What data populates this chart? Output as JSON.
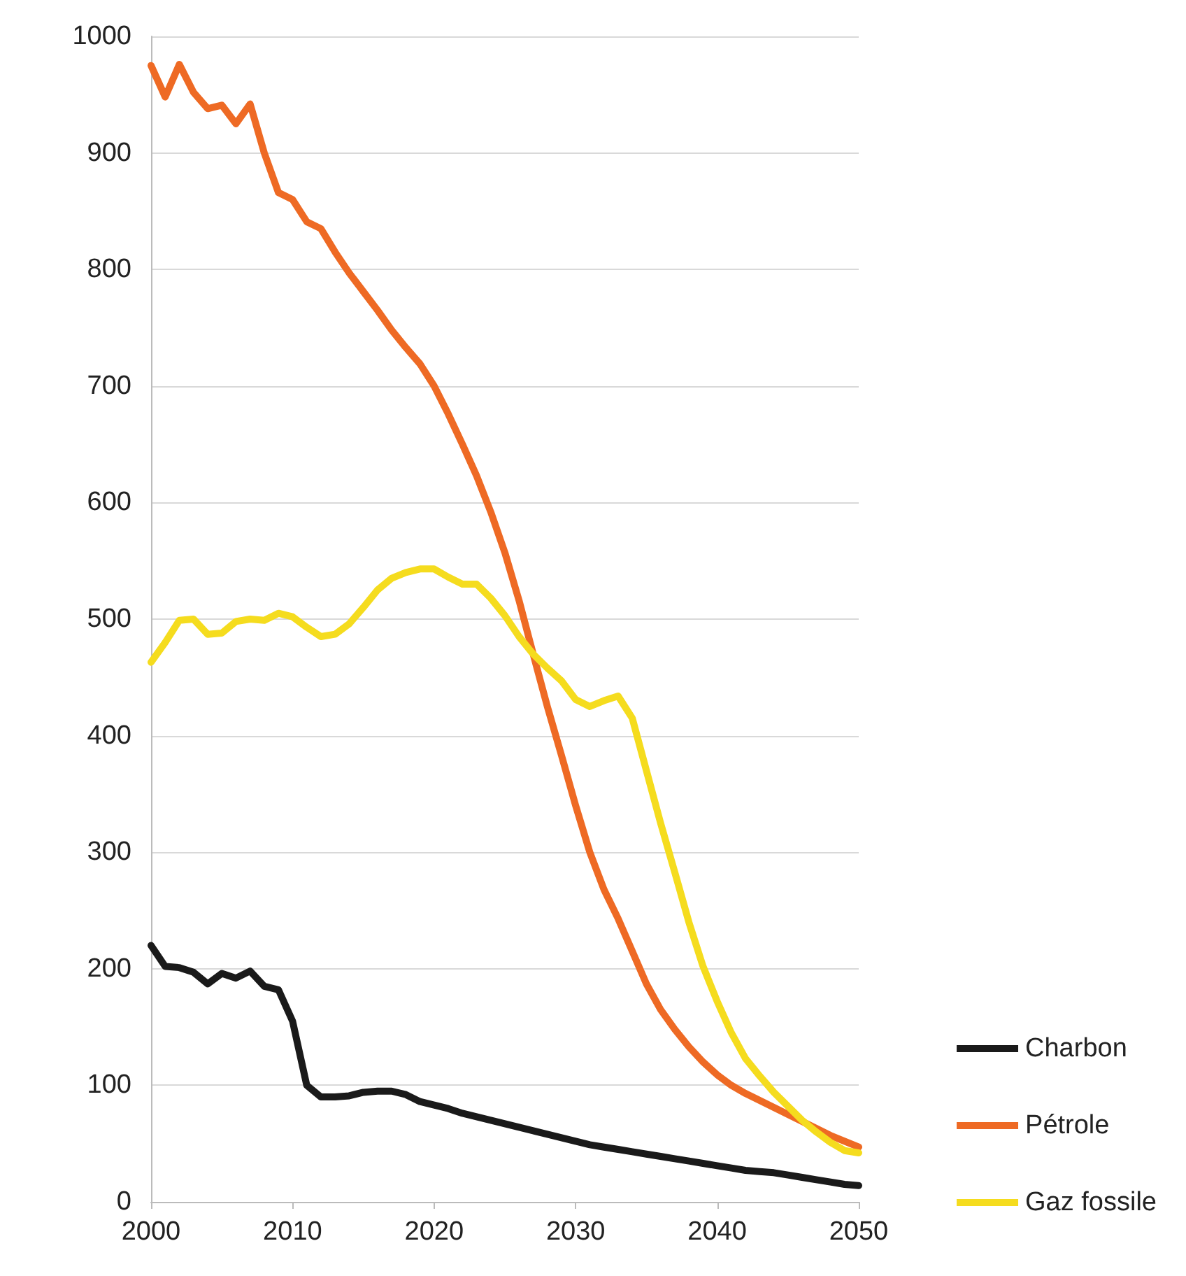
{
  "chart_data": {
    "type": "line",
    "x": [
      2000,
      2001,
      2002,
      2003,
      2004,
      2005,
      2006,
      2007,
      2008,
      2009,
      2010,
      2011,
      2012,
      2013,
      2014,
      2015,
      2016,
      2017,
      2018,
      2019,
      2020,
      2021,
      2022,
      2023,
      2024,
      2025,
      2026,
      2027,
      2028,
      2029,
      2030,
      2031,
      2032,
      2033,
      2034,
      2035,
      2036,
      2037,
      2038,
      2039,
      2040,
      2041,
      2042,
      2043,
      2044,
      2045,
      2046,
      2047,
      2048,
      2049,
      2050
    ],
    "series": [
      {
        "name": "Charbon",
        "color": "#1a1a1a",
        "values": [
          220,
          202,
          201,
          197,
          187,
          196,
          192,
          198,
          185,
          182,
          155,
          100,
          90,
          90,
          91,
          94,
          95,
          95,
          92,
          86,
          83,
          80,
          76,
          73,
          70,
          67,
          64,
          61,
          58,
          55,
          52,
          49,
          47,
          45,
          43,
          41,
          39,
          37,
          35,
          33,
          31,
          29,
          27,
          26,
          25,
          23,
          21,
          19,
          17,
          15,
          14
        ]
      },
      {
        "name": "Pétrole",
        "color": "#ee6a24",
        "values": [
          975,
          948,
          976,
          952,
          938,
          941,
          925,
          942,
          900,
          866,
          860,
          841,
          835,
          815,
          797,
          781,
          765,
          748,
          733,
          719,
          700,
          676,
          650,
          623,
          592,
          557,
          516,
          470,
          425,
          383,
          340,
          300,
          268,
          243,
          215,
          187,
          165,
          148,
          133,
          120,
          109,
          100,
          93,
          87,
          81,
          75,
          69,
          63,
          57,
          52,
          47
        ]
      },
      {
        "name": "Gaz fossile",
        "color": "#f5dc1e",
        "values": [
          463,
          480,
          499,
          500,
          487,
          488,
          498,
          500,
          499,
          505,
          502,
          493,
          485,
          487,
          496,
          510,
          525,
          535,
          540,
          543,
          543,
          536,
          530,
          530,
          518,
          503,
          485,
          470,
          458,
          447,
          431,
          425,
          430,
          434,
          415,
          370,
          325,
          283,
          240,
          202,
          172,
          145,
          123,
          108,
          94,
          82,
          70,
          60,
          51,
          44,
          42
        ]
      }
    ],
    "xlim": [
      2000,
      2050
    ],
    "xticks": [
      2000,
      2010,
      2020,
      2030,
      2040,
      2050
    ],
    "ylim": [
      0,
      1000
    ],
    "yticks": [
      0,
      100,
      200,
      300,
      400,
      500,
      600,
      700,
      800,
      900,
      1000
    ],
    "grid": "y",
    "legend": "bottom right",
    "marker": "none",
    "line_style": "solid"
  }
}
